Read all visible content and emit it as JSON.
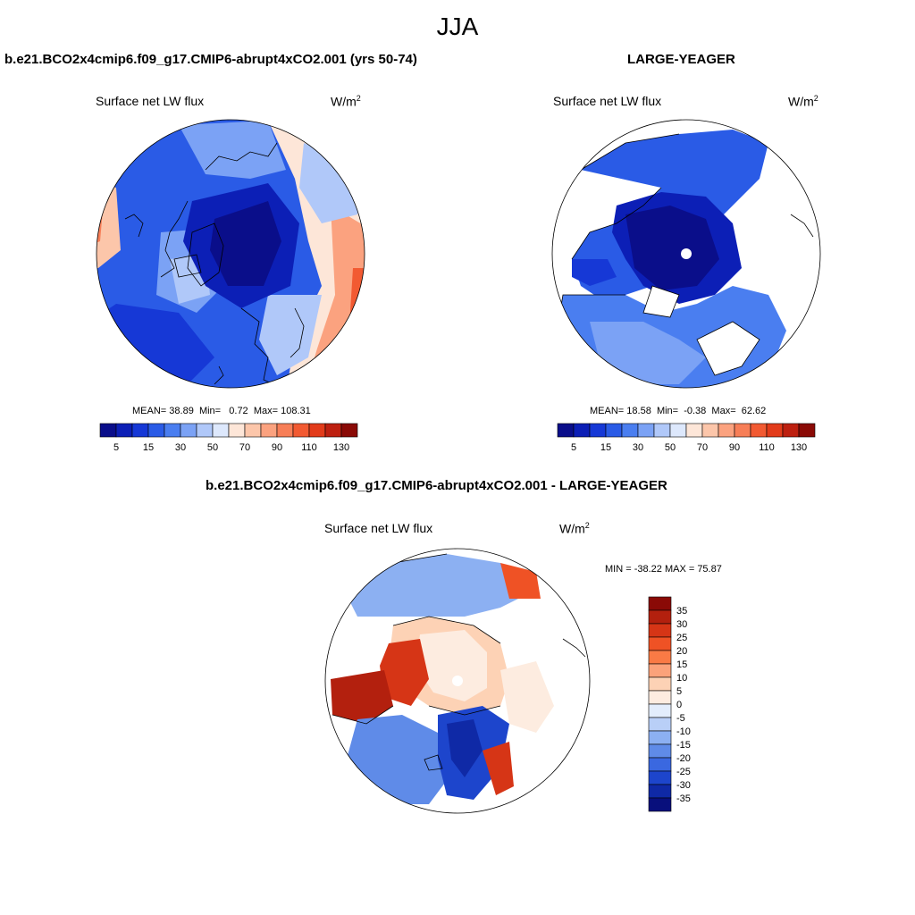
{
  "season": "JJA",
  "variable": "Surface net LW flux",
  "units_base": "W/m",
  "units_exp": "2",
  "palette_seq": [
    "#0a0e8a",
    "#0c1fb6",
    "#1638d6",
    "#2a5be6",
    "#4a7ef0",
    "#7ba2f5",
    "#b0c8f9",
    "#dde8fc",
    "#fde6d8",
    "#fcc6aa",
    "#fba27f",
    "#f77e57",
    "#f25a32",
    "#e23b1a",
    "#bd2010",
    "#8a0a06"
  ],
  "palette_diff": [
    "#8a0a06",
    "#b3200e",
    "#d63516",
    "#ef5225",
    "#f97a45",
    "#fba27a",
    "#fdd2b5",
    "#fdece0",
    "#e3edfc",
    "#b9cff7",
    "#8cb0f2",
    "#5f8be8",
    "#3a68e0",
    "#1d45cc",
    "#0f29a6",
    "#080f7c"
  ],
  "panels": [
    {
      "title": "b.e21.BCO2x4cmip6.f09_g17.CMIP6-abrupt4xCO2.001 (yrs 50-74)",
      "mean_label": "MEAN=",
      "mean": "38.89",
      "min_label": "Min=",
      "min": "0.72",
      "max_label": "Max=",
      "max": "108.31",
      "colorbar_ticks": [
        "5",
        "15",
        "30",
        "50",
        "70",
        "90",
        "110",
        "130"
      ]
    },
    {
      "title": "LARGE-YEAGER",
      "mean_label": "MEAN=",
      "mean": "18.58",
      "min_label": "Min=",
      "min": "-0.38",
      "max_label": "Max=",
      "max": "62.62",
      "colorbar_ticks": [
        "5",
        "15",
        "30",
        "50",
        "70",
        "90",
        "110",
        "130"
      ]
    }
  ],
  "diff": {
    "title": "b.e21.BCO2x4cmip6.f09_g17.CMIP6-abrupt4xCO2.001 - LARGE-YEAGER",
    "minmax": "MIN = -38.22 MAX =  75.87",
    "colorbar_ticks": [
      "35",
      "30",
      "25",
      "20",
      "15",
      "10",
      "5",
      "0",
      "-5",
      "-10",
      "-15",
      "-20",
      "-25",
      "-30",
      "-35"
    ]
  }
}
